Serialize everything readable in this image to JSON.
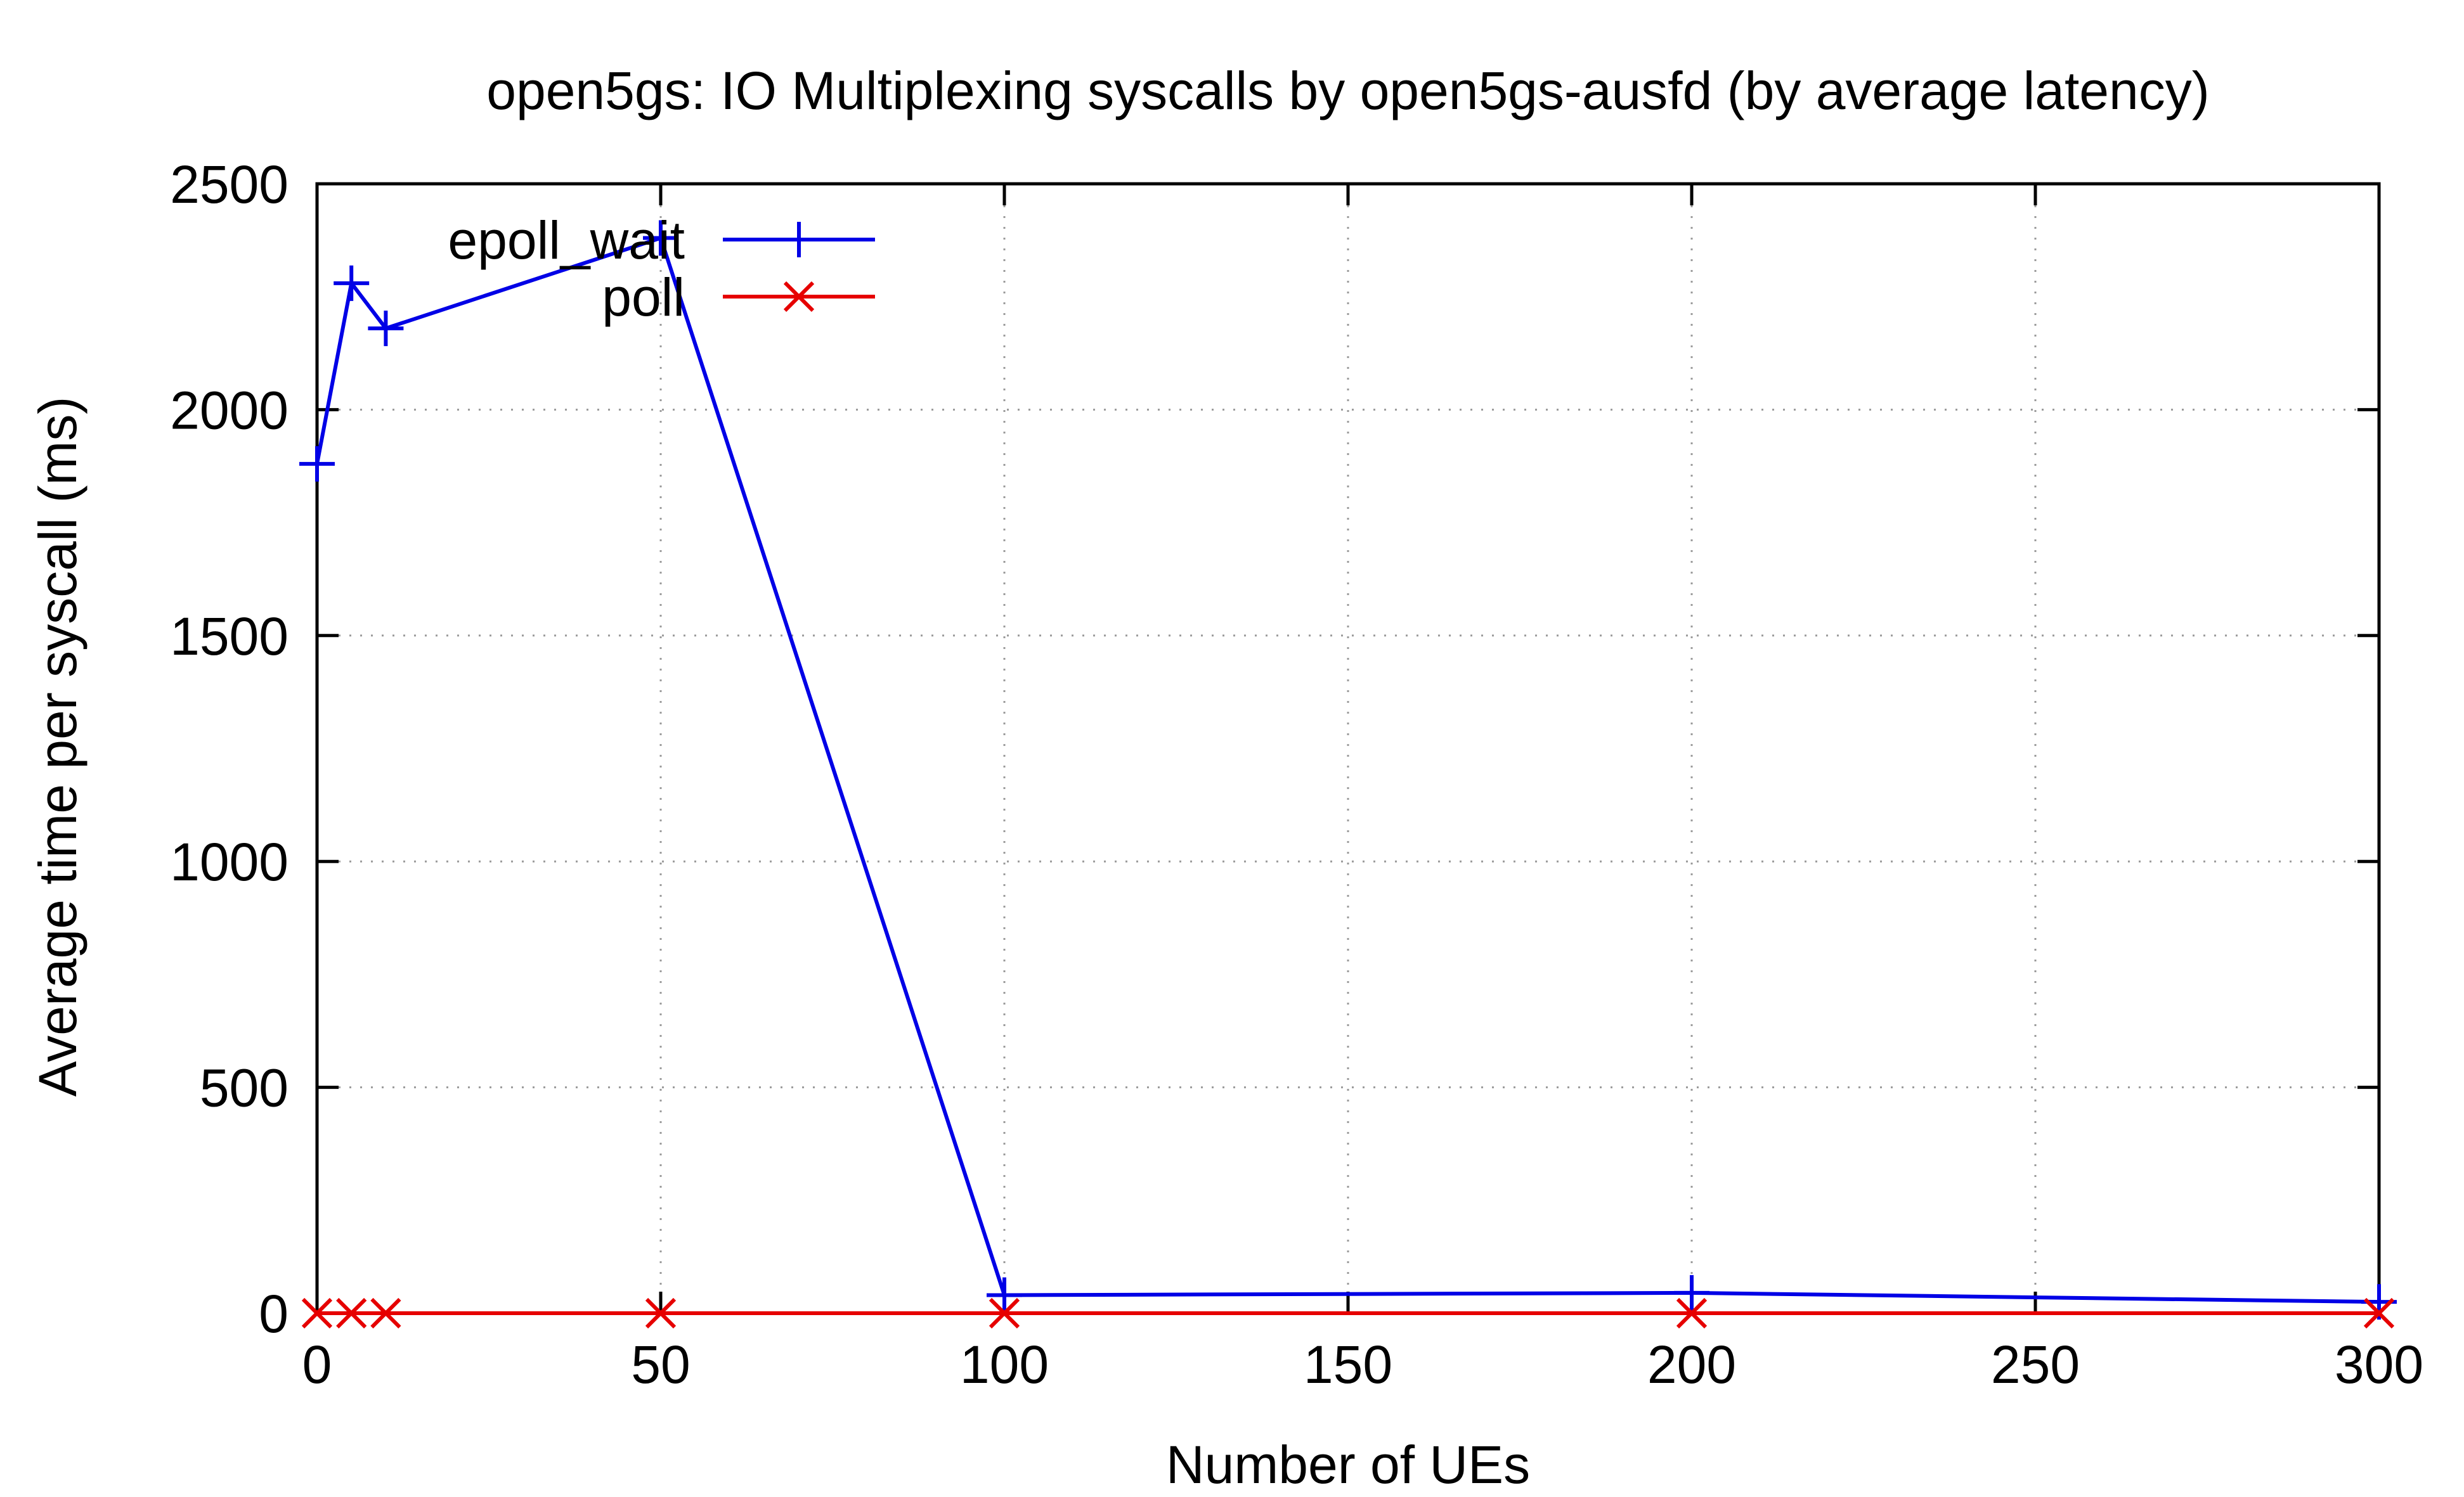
{
  "chart_data": {
    "type": "line",
    "title": "open5gs: IO Multiplexing syscalls by open5gs-ausfd (by average latency)",
    "xlabel": "Number of UEs",
    "ylabel": "Average time per syscall (ms)",
    "xlim": [
      0,
      300
    ],
    "ylim": [
      0,
      2500
    ],
    "xticks": [
      0,
      50,
      100,
      150,
      200,
      250,
      300
    ],
    "yticks": [
      0,
      500,
      1000,
      1500,
      2000,
      2500
    ],
    "grid": true,
    "legend_position": "top-left",
    "series": [
      {
        "name": "epoll_wait",
        "color": "#0000e6",
        "marker": "plus",
        "points": [
          {
            "x": 0,
            "y": 1880
          },
          {
            "x": 5,
            "y": 2280
          },
          {
            "x": 10,
            "y": 2180
          },
          {
            "x": 50,
            "y": 2380
          },
          {
            "x": 100,
            "y": 40
          },
          {
            "x": 200,
            "y": 45
          },
          {
            "x": 300,
            "y": 25
          }
        ]
      },
      {
        "name": "poll",
        "color": "#e60000",
        "marker": "cross",
        "points": [
          {
            "x": 0,
            "y": 0
          },
          {
            "x": 5,
            "y": 0
          },
          {
            "x": 10,
            "y": 0
          },
          {
            "x": 50,
            "y": 0
          },
          {
            "x": 100,
            "y": 0
          },
          {
            "x": 200,
            "y": 0
          },
          {
            "x": 300,
            "y": 0
          }
        ]
      }
    ]
  }
}
